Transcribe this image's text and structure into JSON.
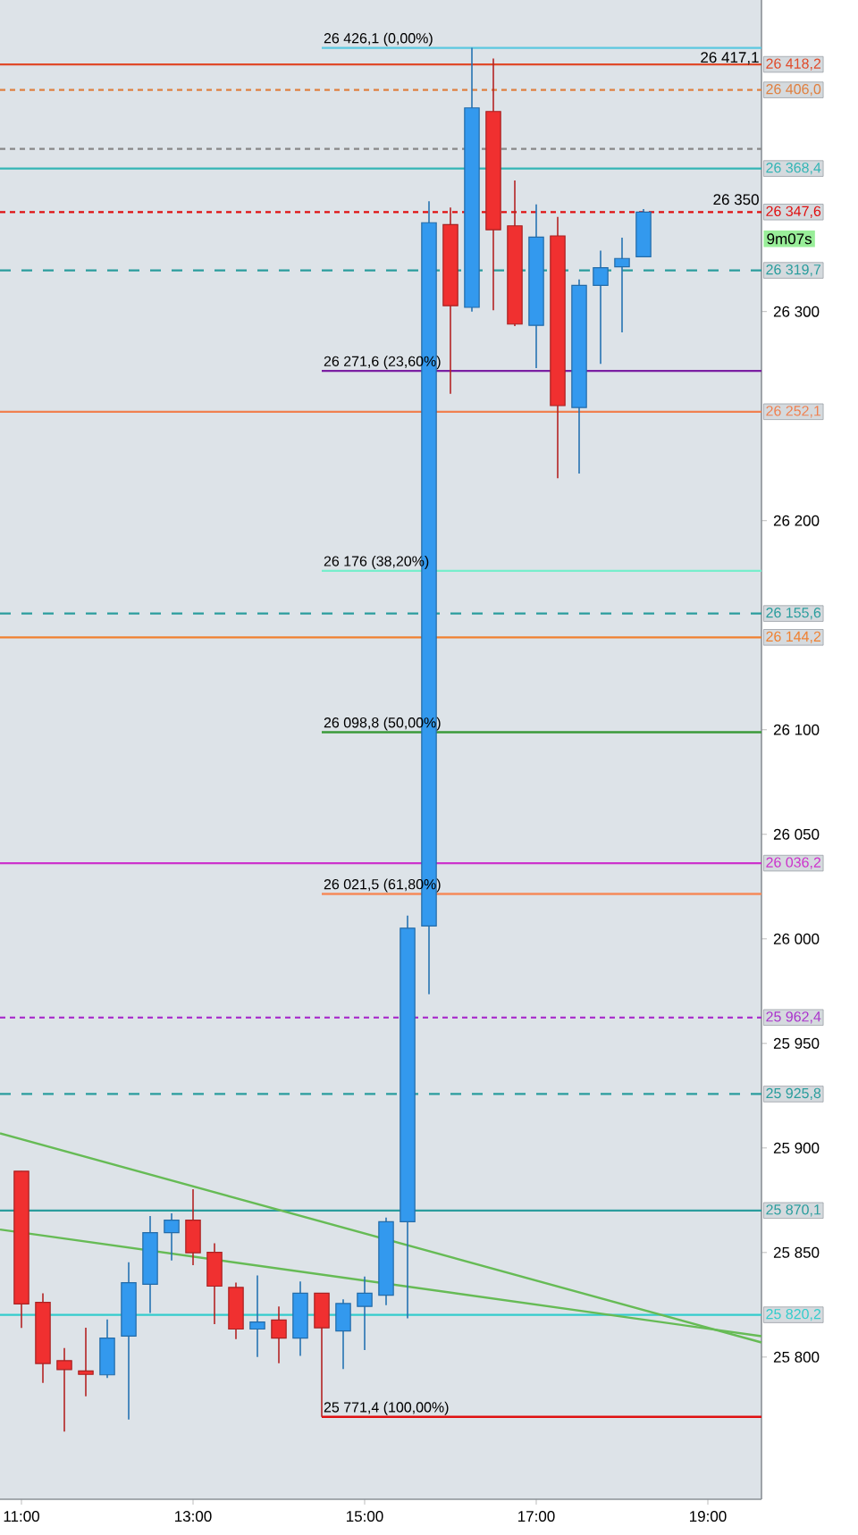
{
  "chart_data": {
    "type": "candlestick",
    "x": [
      11,
      11.25,
      11.5,
      11.75,
      12,
      12.25,
      12.5,
      12.75,
      13,
      13.25,
      13.5,
      13.75,
      14,
      14.25,
      14.5,
      14.75,
      15,
      15.25,
      15.5,
      15.75,
      16,
      16.25,
      16.5,
      16.75,
      17,
      17.25,
      17.5,
      17.75,
      18,
      18.25
    ],
    "ohlc": [
      [
        25888.9,
        25888.9,
        25813.9,
        25825.4
      ],
      [
        25826.2,
        25830.5,
        25787.7,
        25796.9
      ],
      [
        25798.3,
        25804.3,
        25764.4,
        25794.0
      ],
      [
        25793.4,
        25814.0,
        25781.2,
        25791.7
      ],
      [
        25791.5,
        25818.0,
        25790.0,
        25809.1
      ],
      [
        25810.0,
        25845.3,
        25770.1,
        25835.6
      ],
      [
        25834.8,
        25867.5,
        25821.1,
        25859.5
      ],
      [
        25859.5,
        25868.7,
        25846.2,
        25865.5
      ],
      [
        25865.5,
        25880.3,
        25843.9,
        25849.9
      ],
      [
        25850.1,
        25854.4,
        25815.7,
        25833.9
      ],
      [
        25833.3,
        25835.6,
        25808.6,
        25813.4
      ],
      [
        25813.4,
        25839.0,
        25800.0,
        25816.8
      ],
      [
        25817.7,
        25824.2,
        25797.1,
        25809.1
      ],
      [
        25809.1,
        25836.2,
        25800.6,
        25830.5
      ],
      [
        25830.5,
        25830.5,
        25771.4,
        25814.0
      ],
      [
        25812.5,
        25827.6,
        25794.3,
        25825.6
      ],
      [
        25824.2,
        25838.5,
        25803.4,
        25830.5
      ],
      [
        25829.6,
        25866.7,
        25824.8,
        25864.7
      ],
      [
        25864.7,
        26011.1,
        25818.5,
        26005.1
      ],
      [
        26006.2,
        26352.7,
        25973.5,
        26342.5
      ],
      [
        26341.6,
        26349.8,
        26260.7,
        26302.8
      ],
      [
        26302.0,
        26426.1,
        26300.0,
        26397.4
      ],
      [
        26395.7,
        26421.0,
        26300.6,
        26339.1
      ],
      [
        26341.0,
        26362.7,
        26293.0,
        26294.0
      ],
      [
        26293.4,
        26351.3,
        26272.9,
        26335.6
      ],
      [
        26336.2,
        26345.3,
        26220.3,
        26255.0
      ],
      [
        26254.1,
        26315.4,
        26222.5,
        26312.5
      ],
      [
        26312.5,
        26329.1,
        26275.0,
        26321.0
      ],
      [
        26321.4,
        26335.3,
        26290.0,
        26325.4
      ],
      [
        26326.2,
        26349.0,
        26326.2,
        26347.6
      ]
    ],
    "colors": [
      "#f03030",
      "#f03030",
      "#f03030",
      "#f03030",
      "#3399ee",
      "#3399ee",
      "#3399ee",
      "#3399ee",
      "#f03030",
      "#f03030",
      "#f03030",
      "#3399ee",
      "#f03030",
      "#3399ee",
      "#f03030",
      "#3399ee",
      "#3399ee",
      "#3399ee",
      "#3399ee",
      "#3399ee",
      "#f03030",
      "#3399ee",
      "#f03030",
      "#f03030",
      "#3399ee",
      "#f03030",
      "#3399ee",
      "#3399ee",
      "#3399ee",
      "#3399ee"
    ],
    "series": [
      {
        "type": "line",
        "name": "26 426,1 (0,00%)",
        "color": "#5bc8e0",
        "x": [
          14.5,
          19.625
        ],
        "values": [
          26426.1,
          26426.1
        ]
      },
      {
        "type": "line",
        "name": "26 271,6 (23,60%)",
        "color": "#7b1fa2",
        "x": [
          14.5,
          19.625
        ],
        "values": [
          26271.6,
          26271.6
        ]
      },
      {
        "type": "line",
        "name": "26 176 (38,20%)",
        "color": "#77eecc",
        "x": [
          14.5,
          19.625
        ],
        "values": [
          26176,
          26176
        ]
      },
      {
        "type": "line",
        "name": "26 098,8 (50,00%)",
        "color": "#3a9a3a",
        "x": [
          14.5,
          19.625
        ],
        "values": [
          26098.8,
          26098.8
        ]
      },
      {
        "type": "line",
        "name": "26 021,5 (61,80%)",
        "color": "#f58a5a",
        "x": [
          14.5,
          19.625
        ],
        "values": [
          26021.5,
          26021.5
        ]
      },
      {
        "type": "line",
        "name": "25 771,4 (100,00%)",
        "color": "#e01010",
        "x": [
          14.5,
          19.625
        ],
        "values": [
          25771.4,
          25771.4
        ]
      },
      {
        "type": "line",
        "color": "#66bb55",
        "x": [
          10.75,
          19.625
        ],
        "values": [
          25907,
          25807
        ]
      },
      {
        "type": "line",
        "color": "#66bb55",
        "x": [
          10.75,
          19.625
        ],
        "values": [
          25861,
          25810
        ]
      }
    ],
    "ref_lines": [
      {
        "axis": "y",
        "value": 26418.2,
        "label": "26 418,2",
        "color": "#e04a2a",
        "line_style": "solid"
      },
      {
        "axis": "y",
        "value": 26406.0,
        "label": "26 406,0",
        "color": "#e08040",
        "line_style": "dotted"
      },
      {
        "axis": "y",
        "value": 26377.8,
        "color": "#888888",
        "line_style": "dotted"
      },
      {
        "axis": "y",
        "value": 26368.4,
        "label": "26 368,4",
        "color": "#33b5b5",
        "line_style": "solid"
      },
      {
        "axis": "y",
        "value": 26347.6,
        "label": "26 347,6",
        "color": "#e01010",
        "line_style": "dotted"
      },
      {
        "axis": "y",
        "value": 26319.7,
        "label": "26 319,7",
        "color": "#2a9d9d",
        "line_style": "dashed"
      },
      {
        "axis": "y",
        "value": 26252.1,
        "label": "26 252,1",
        "color": "#f08050",
        "line_style": "solid"
      },
      {
        "axis": "y",
        "value": 26155.6,
        "label": "26 155,6",
        "color": "#2a9d9d",
        "line_style": "dashed"
      },
      {
        "axis": "y",
        "value": 26144.2,
        "label": "26 144,2",
        "color": "#f08030",
        "line_style": "solid"
      },
      {
        "axis": "y",
        "value": 26036.2,
        "label": "26 036,2",
        "color": "#cc33cc",
        "line_style": "solid"
      },
      {
        "axis": "y",
        "value": 25962.4,
        "label": "25 962,4",
        "color": "#aa33cc",
        "line_style": "dotted"
      },
      {
        "axis": "y",
        "value": 25925.8,
        "label": "25 925,8",
        "color": "#2a9d9d",
        "line_style": "dashed"
      },
      {
        "axis": "y",
        "value": 25870.1,
        "label": "25 870,1",
        "color": "#2a9d9d",
        "line_style": "solid"
      },
      {
        "axis": "y",
        "value": 25820.2,
        "label": "25 820,2",
        "color": "#33cccc",
        "line_style": "solid"
      }
    ],
    "annotations": [
      {
        "text": "26 417,1",
        "x": 19.625,
        "y": 26417.1
      },
      {
        "text": "26 350",
        "x": 19.625,
        "y": 26350
      },
      "9m07s"
    ],
    "xlim": [
      10.75,
      19.625
    ],
    "ylim": [
      25732,
      26449
    ],
    "xticks": [
      {
        "value": 11,
        "label": "11:00"
      },
      {
        "value": 13,
        "label": "13:00"
      },
      {
        "value": 15,
        "label": "15:00"
      },
      {
        "value": 17,
        "label": "17:00"
      },
      {
        "value": 19,
        "label": "19:00"
      }
    ],
    "yticks": [
      {
        "value": 25800,
        "label": "25 800"
      },
      {
        "value": 25850,
        "label": "25 850"
      },
      {
        "value": 25900,
        "label": "25 900"
      },
      {
        "value": 25950,
        "label": "25 950"
      },
      {
        "value": 26000,
        "label": "26 000"
      },
      {
        "value": 26050,
        "label": "26 050"
      },
      {
        "value": 26100,
        "label": "26 100"
      },
      {
        "value": 26200,
        "label": "26 200"
      },
      {
        "value": 26300,
        "label": "26 300"
      }
    ],
    "grid": false
  }
}
